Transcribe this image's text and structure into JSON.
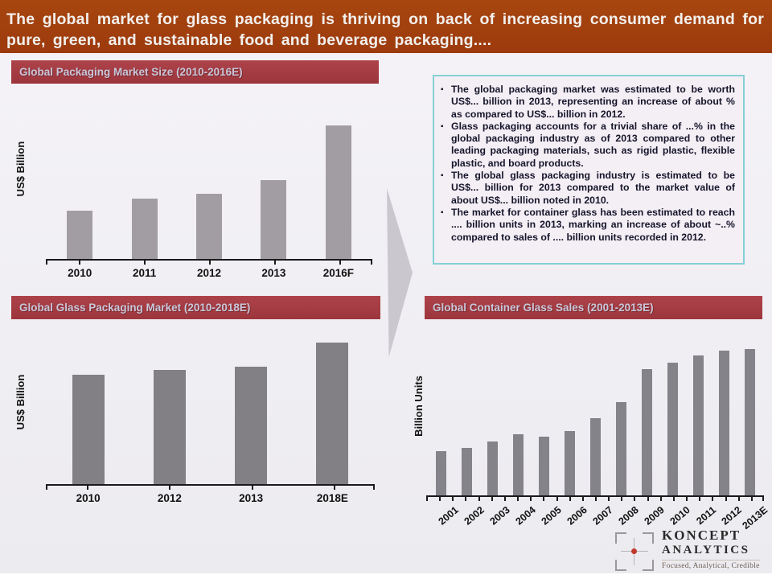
{
  "slide": {
    "title": "The global market for glass packaging is thriving on back of increasing consumer demand for pure, green, and sustainable food and beverage packaging....",
    "colors": {
      "banner_bg": "#A23E11",
      "panel_title_bg": "#A43B40",
      "panel_title_text": "#C9C7DB",
      "slide_bg": "#F1EFF3",
      "bar_gray_light": "#A29CA3",
      "bar_gray_dark": "#828084",
      "box_border": "#85D0D6",
      "box_bg": "#F4EEF5",
      "arrow_gray": "#CBC7CF",
      "logo_dot_red": "#C0392B"
    }
  },
  "chart_data": [
    {
      "type": "bar",
      "title": "Global Packaging Market Size (2010-2016E)",
      "categories": [
        "2010",
        "2011",
        "2012",
        "2013",
        "2016F"
      ],
      "values": [
        29,
        36,
        39,
        47,
        80
      ],
      "xlabel": "",
      "ylabel": "US$ Billion",
      "ylim": [
        0,
        100
      ],
      "grid": false,
      "legend": false,
      "bar_color": "#A29CA3",
      "note": "no numeric data labels or y-axis ticks shown; values are relative estimates as % of plot height"
    },
    {
      "type": "bar",
      "title": "Global Glass Packaging Market (2010-2018E)",
      "categories": [
        "2010",
        "2012",
        "2013",
        "2018E"
      ],
      "values": [
        68,
        71,
        73,
        88
      ],
      "xlabel": "",
      "ylabel": "US$ Billion",
      "ylim": [
        0,
        100
      ],
      "grid": false,
      "legend": false,
      "bar_color": "#828084",
      "note": "no numeric data labels or y-axis ticks shown; values are relative estimates as % of plot height"
    },
    {
      "type": "bar",
      "title": "Global Container Glass Sales (2001-2013E)",
      "categories": [
        "2001",
        "2002",
        "2003",
        "2004",
        "2005",
        "2006",
        "2007",
        "2008",
        "2009",
        "2010",
        "2011",
        "2012",
        "2013E"
      ],
      "values": [
        28,
        30,
        34,
        39,
        37,
        41,
        49,
        59,
        80,
        84,
        89,
        92,
        93
      ],
      "xlabel": "",
      "ylabel": "Billion Units",
      "ylim": [
        0,
        100
      ],
      "grid": false,
      "legend": false,
      "bar_color": "#85838a",
      "note": "no numeric data labels or y-axis ticks shown; values are relative estimates as % of plot height"
    }
  ],
  "bullets": {
    "items": [
      "The global packaging market was estimated to be worth US$... billion in 2013, representing an increase of about % as compared to US$... billion in 2012.",
      "Glass packaging accounts for a trivial share of ...% in the global packaging industry as of 2013 compared to other leading packaging materials, such as rigid plastic, flexible plastic, and board products.",
      "The global glass packaging industry is estimated to be US$... billion for 2013 compared to the market value of about US$... billion noted in 2010.",
      "The market for container glass has been estimated to reach .... billion units in 2013, marking an increase of about ~..% compared to sales of .... billion units recorded in 2012."
    ]
  },
  "logo": {
    "name_line1": "KONCEPT",
    "name_line2": "ANALYTICS",
    "tagline": "Focused, Analytical, Credible"
  }
}
